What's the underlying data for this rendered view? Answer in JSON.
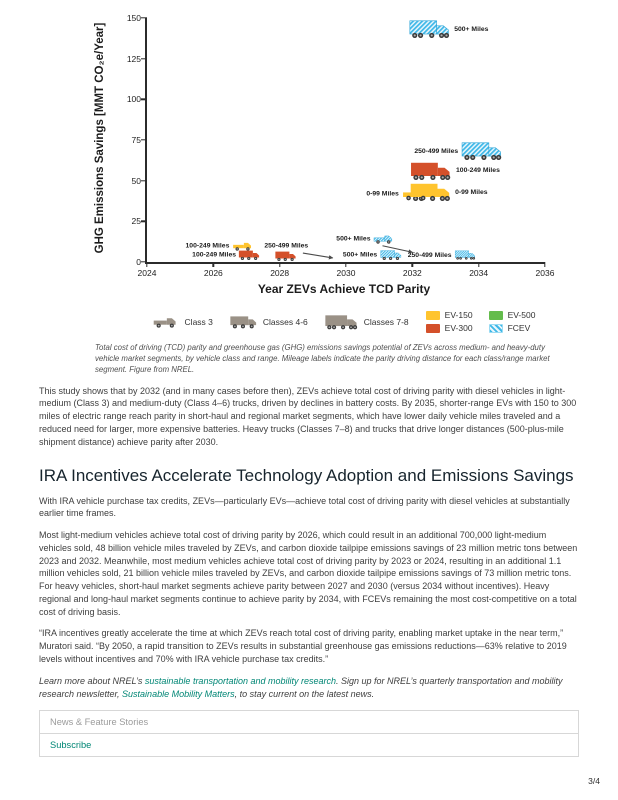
{
  "page": {
    "number": "3/4"
  },
  "figure": {
    "caption": "Total cost of driving (TCD) parity and greenhouse gas (GHG) emissions savings potential of ZEVs across medium- and heavy-duty vehicle market segments, by vehicle class and range. Mileage labels indicate the parity driving distance for each class/range market segment. Figure from NREL.",
    "legend": {
      "vehicle_icon_color": "#9a9186",
      "vehicles": [
        {
          "label": "Class 3",
          "icon": "pickup"
        },
        {
          "label": "Classes 4-6",
          "icon": "box"
        },
        {
          "label": "Classes 7-8",
          "icon": "semi"
        }
      ],
      "techs": [
        {
          "label": "EV-150",
          "color": "#FFC42E"
        },
        {
          "label": "EV-300",
          "color": "#D4502A"
        },
        {
          "label": "EV-500",
          "color": "#64BC4C"
        },
        {
          "label": "FCEV",
          "color": "#3FB8E8",
          "hatched": true
        }
      ]
    },
    "chart_data": {
      "type": "scatter",
      "title": "",
      "xlabel": "Year ZEVs Achieve TCD Parity",
      "ylabel": "GHG Emissions Savings [MMT CO₂e/Year]",
      "xlim": [
        2024,
        2036
      ],
      "ylim": [
        0,
        150
      ],
      "xticks": [
        2024,
        2026,
        2028,
        2030,
        2032,
        2034,
        2036
      ],
      "yticks": [
        0,
        25,
        50,
        75,
        100,
        125,
        150
      ],
      "points": [
        {
          "vehicle": "Classes 7-8",
          "icon": "semi",
          "tech": "FCEV",
          "label": "500+ Miles",
          "x": 2033.1,
          "y": 143,
          "size": "lg",
          "label_side": "right"
        },
        {
          "vehicle": "Classes 7-8",
          "icon": "semi",
          "tech": "FCEV",
          "label": "250-499 Miles",
          "x": 2033.4,
          "y": 68,
          "size": "lg",
          "label_side": "left"
        },
        {
          "vehicle": "Classes 7-8",
          "icon": "semi",
          "tech": "EV-300",
          "label": "100-249 Miles",
          "x": 2033.3,
          "y": 56,
          "size": "lg",
          "label_side": "right"
        },
        {
          "vehicle": "Classes 7-8",
          "icon": "semi",
          "tech": "EV-150",
          "label": "0-99 Miles",
          "x": 2033.1,
          "y": 43,
          "size": "lg",
          "label_side": "right"
        },
        {
          "vehicle": "Class 3",
          "icon": "pickup",
          "tech": "EV-150",
          "label": "0-99 Miles",
          "x": 2031.6,
          "y": 42,
          "size": "md",
          "label_side": "left"
        },
        {
          "vehicle": "Class 3",
          "icon": "pickup",
          "tech": "EV-150",
          "label": "100-249 Miles",
          "x": 2026.2,
          "y": 10,
          "size": "sm",
          "label_side": "left"
        },
        {
          "vehicle": "Classes 4-6",
          "icon": "box",
          "tech": "EV-300",
          "label": "100-249 Miles",
          "x": 2026.4,
          "y": 4,
          "size": "sm",
          "label_side": "left"
        },
        {
          "vehicle": "Classes 4-6",
          "icon": "box",
          "tech": "EV-300",
          "label": "250-499 Miles",
          "x": 2028.2,
          "y": 6,
          "size": "sm",
          "label_side": "above"
        },
        {
          "vehicle": "Class 3",
          "icon": "pickup",
          "tech": "FCEV",
          "label": "500+ Miles",
          "x": 2030.6,
          "y": 14,
          "size": "sm",
          "label_side": "left"
        },
        {
          "vehicle": "Classes 4-6",
          "icon": "box",
          "tech": "FCEV",
          "label": "500+ Miles",
          "x": 2030.8,
          "y": 4,
          "size": "sm",
          "label_side": "left"
        },
        {
          "vehicle": "Classes 7-8",
          "icon": "semi",
          "tech": "FCEV",
          "label": "250-499 Miles",
          "x": 2032.9,
          "y": 4,
          "size": "sm",
          "label_side": "left"
        }
      ],
      "arrows": [
        {
          "from": [
            2028.7,
            5.5
          ],
          "to": [
            2029.6,
            2.5
          ]
        },
        {
          "from": [
            2031.1,
            10.0
          ],
          "to": [
            2032.0,
            6.0
          ]
        }
      ]
    }
  },
  "article": {
    "paragraph1": "This study shows that by 2032 (and in many cases before then), ZEVs achieve total cost of driving parity with diesel vehicles in light-medium (Class 3) and medium-duty (Class 4–6) trucks, driven by declines in battery costs. By 2035, shorter-range EVs with 150 to 300 miles of electric range reach parity in short-haul and regional market segments, which have lower daily vehicle miles traveled and a reduced need for larger, more expensive batteries. Heavy trucks (Classes 7–8) and trucks that drive longer distances (500-plus-mile shipment distance) achieve parity after 2030.",
    "heading": "IRA Incentives Accelerate Technology Adoption and Emissions Savings",
    "paragraph2": "With IRA vehicle purchase tax credits, ZEVs—particularly EVs—achieve total cost of driving parity with diesel vehicles at substantially earlier time frames.",
    "paragraph3": "Most light-medium vehicles achieve total cost of driving parity by 2026, which could result in an additional 700,000 light-medium vehicles sold, 48 billion vehicle miles traveled by ZEVs, and carbon dioxide tailpipe emissions savings of 23 million metric tons between 2023 and 2032. Meanwhile, most medium vehicles achieve total cost of driving parity by 2023 or 2024, resulting in an additional 1.1 million vehicles sold, 21 billion vehicle miles traveled by ZEVs, and carbon dioxide tailpipe emissions savings of 73 million metric tons. For heavy vehicles, short-haul market segments achieve parity between 2027 and 2030 (versus 2034 without incentives). Heavy regional and long-haul market segments continue to achieve parity by 2034, with FCEVs remaining the most cost-competitive on a total cost of driving basis.",
    "paragraph4": "“IRA incentives greatly accelerate the time at which ZEVs reach total cost of driving parity, enabling market uptake in the near term,” Muratori said. “By 2050, a rapid transition to ZEVs results in substantial greenhouse gas emissions reductions—63% relative to 2019 levels without incentives and 70% with IRA vehicle purchase tax credits.”",
    "learn_more": {
      "prefix": "Learn more about NREL’s ",
      "link1": "sustainable transportation and mobility research",
      "mid": ". Sign up for NREL’s quarterly transportation and mobility research newsletter, ",
      "link2": "Sustainable Mobility Matters",
      "suffix": ", to stay current on the latest news."
    }
  },
  "footer": {
    "news_label": "News & Feature Stories",
    "subscribe_label": "Subscribe"
  }
}
